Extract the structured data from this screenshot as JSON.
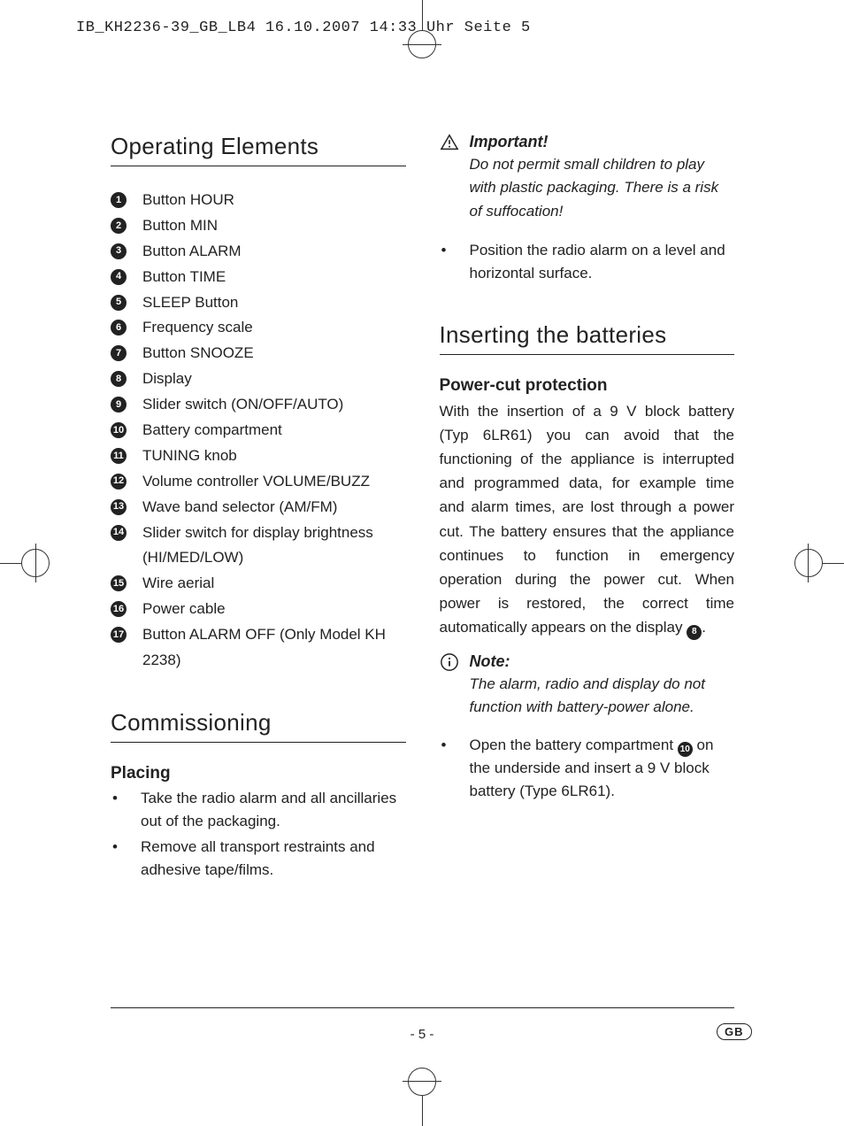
{
  "header_text": "IB_KH2236-39_GB_LB4  16.10.2007  14:33 Uhr  Seite 5",
  "page_number": "- 5 -",
  "lang_code": "GB",
  "colors": {
    "text": "#222222",
    "bg": "#ffffff",
    "rule": "#222222",
    "badge_bg": "#222222",
    "badge_fg": "#ffffff"
  },
  "left": {
    "section1_title": "Operating Elements",
    "items": [
      {
        "n": "1",
        "t": "Button HOUR"
      },
      {
        "n": "2",
        "t": "Button MIN"
      },
      {
        "n": "3",
        "t": "Button ALARM"
      },
      {
        "n": "4",
        "t": "Button TIME"
      },
      {
        "n": "5",
        "t": "SLEEP Button"
      },
      {
        "n": "6",
        "t": "Frequency scale"
      },
      {
        "n": "7",
        "t": "Button SNOOZE"
      },
      {
        "n": "8",
        "t": "Display"
      },
      {
        "n": "9",
        "t": "Slider switch (ON/OFF/AUTO)"
      },
      {
        "n": "10",
        "t": "Battery compartment"
      },
      {
        "n": "11",
        "t": "TUNING knob"
      },
      {
        "n": "12",
        "t": "Volume controller VOLUME/BUZZ"
      },
      {
        "n": "13",
        "t": "Wave band selector (AM/FM)"
      },
      {
        "n": "14",
        "t": "Slider switch for display brightness (HI/MED/LOW)"
      },
      {
        "n": "15",
        "t": "Wire aerial"
      },
      {
        "n": "16",
        "t": "Power cable"
      },
      {
        "n": "17",
        "t": "Button ALARM OFF (Only Model KH 2238)"
      }
    ],
    "section2_title": "Commissioning",
    "sub1": "Placing",
    "bullets": [
      "Take the radio alarm and all ancillaries out of the packaging.",
      "Remove all transport restraints and adhesive tape/films."
    ]
  },
  "right": {
    "important_title": "Important!",
    "important_body": "Do not permit small children to play with plastic packaging. There is a risk of suffocation!",
    "after_important_bullet": "Position the radio alarm on a level and horizontal surface.",
    "section_title": "Inserting the batteries",
    "sub1": "Power-cut protection",
    "para_pre": "With the insertion of a 9 V block battery (Typ 6LR61) you can avoid that the functioning of the appliance is interrupted and programmed data, for example time and alarm times, are lost through a power cut. The battery ensures that the appliance continues to function in emergency operation during the power cut. When power is restored, the correct time automatically appears on the display ",
    "para_ref": "8",
    "para_post": ".",
    "note_title": "Note:",
    "note_body": "The alarm, radio and display do not function with battery-power alone.",
    "bullet2_pre": "Open the battery compartment ",
    "bullet2_ref": "10",
    "bullet2_post": " on the underside and insert a 9 V block battery (Type 6LR61)."
  }
}
